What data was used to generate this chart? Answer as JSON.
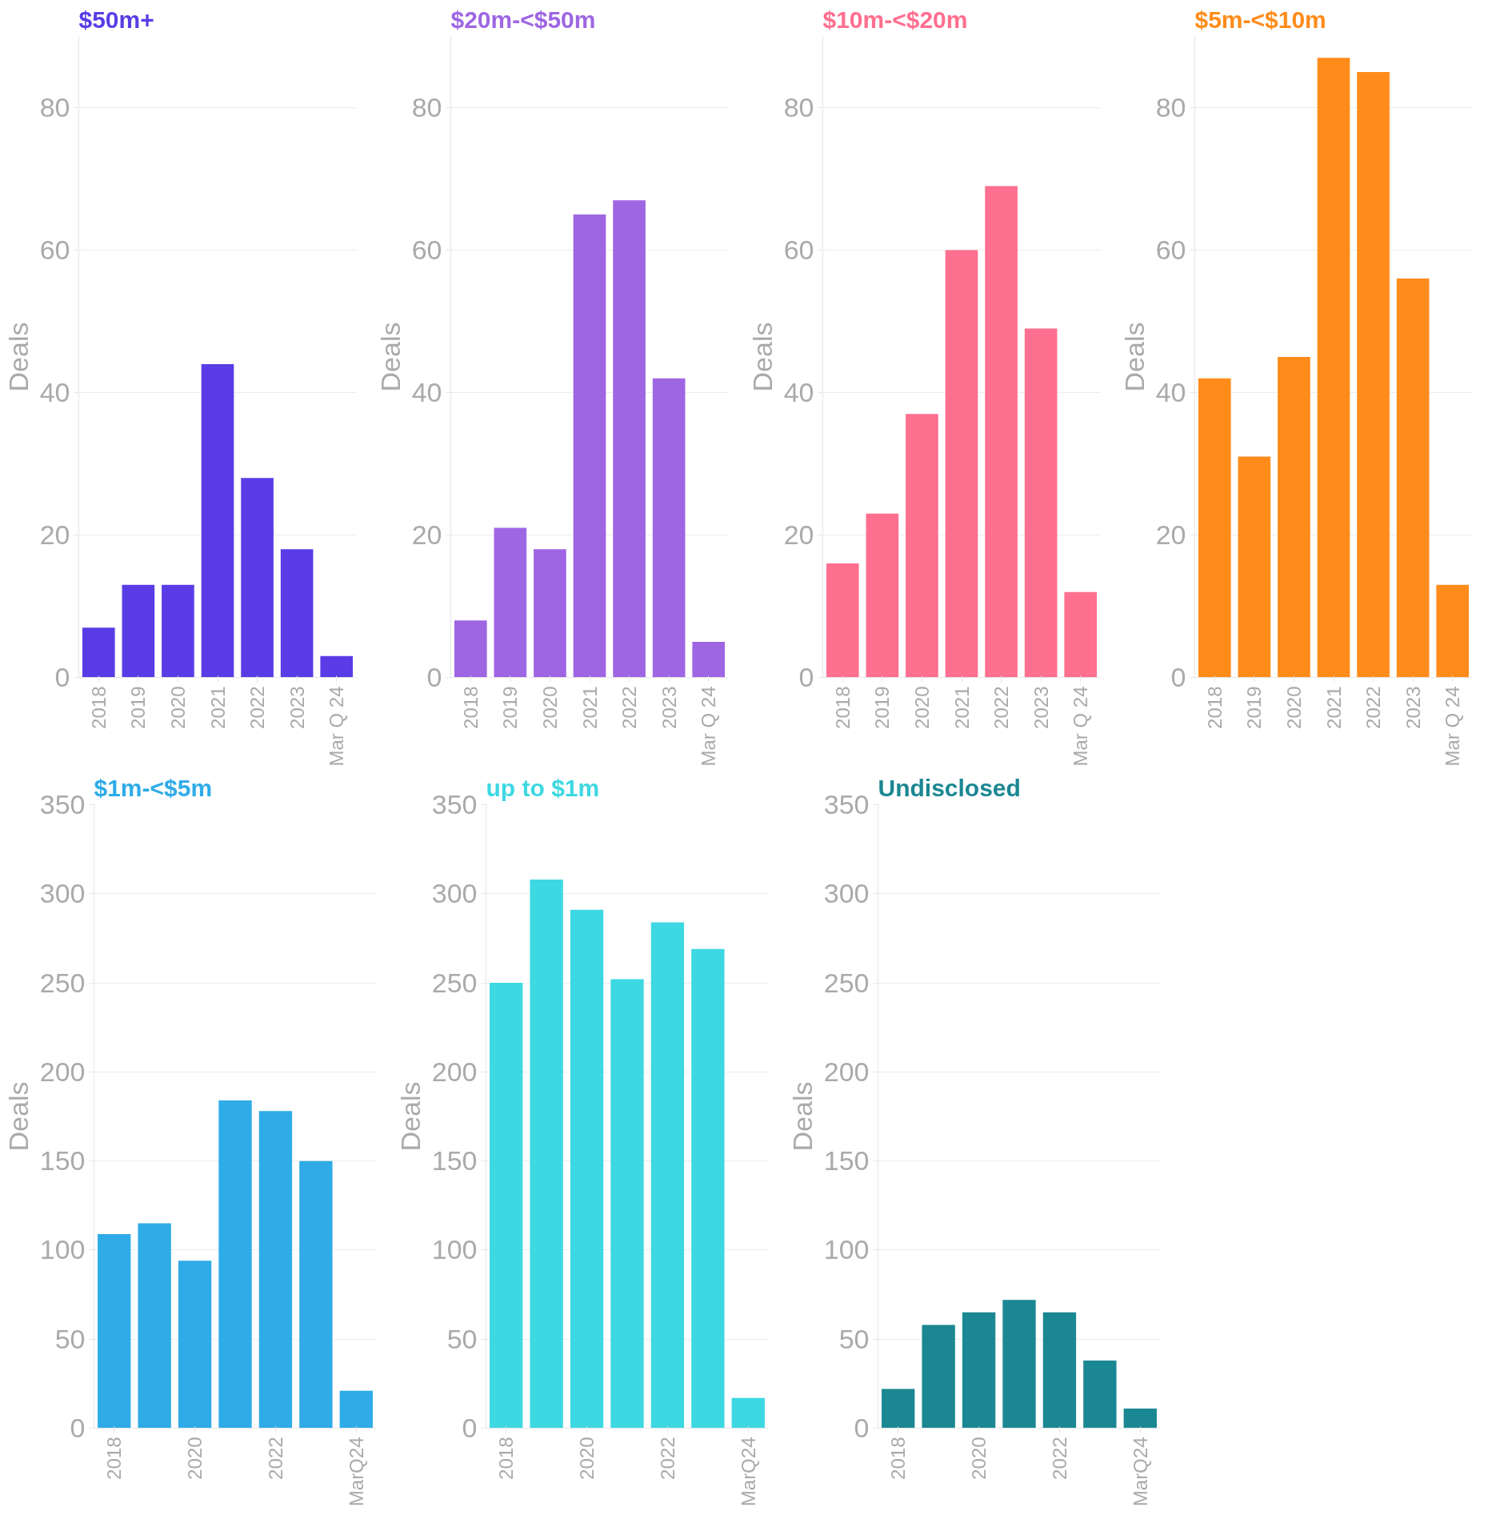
{
  "chart_data": [
    {
      "type": "bar",
      "title": "$50m+",
      "ylabel": "Deals",
      "categories": [
        "2018",
        "2019",
        "2020",
        "2021",
        "2022",
        "2023",
        "Mar Q 24"
      ],
      "values": [
        7,
        13,
        13,
        44,
        28,
        18,
        3
      ],
      "color": "#5a3ce6",
      "ylim": [
        0,
        90
      ],
      "yticks": [
        0,
        20,
        40,
        60,
        80
      ],
      "grid": "y"
    },
    {
      "type": "bar",
      "title": "$20m-<$50m",
      "ylabel": "Deals",
      "categories": [
        "2018",
        "2019",
        "2020",
        "2021",
        "2022",
        "2023",
        "Mar Q 24"
      ],
      "values": [
        8,
        21,
        18,
        65,
        67,
        42,
        5
      ],
      "color": "#9e66e3",
      "ylim": [
        0,
        90
      ],
      "yticks": [
        0,
        20,
        40,
        60,
        80
      ],
      "grid": "y"
    },
    {
      "type": "bar",
      "title": "$10m-<$20m",
      "ylabel": "Deals",
      "categories": [
        "2018",
        "2019",
        "2020",
        "2021",
        "2022",
        "2023",
        "Mar Q 24"
      ],
      "values": [
        16,
        23,
        37,
        60,
        69,
        49,
        12
      ],
      "color": "#ff6f8f",
      "ylim": [
        0,
        90
      ],
      "yticks": [
        0,
        20,
        40,
        60,
        80
      ],
      "grid": "y"
    },
    {
      "type": "bar",
      "title": "$5m-<$10m",
      "ylabel": "Deals",
      "categories": [
        "2018",
        "2019",
        "2020",
        "2021",
        "2022",
        "2023",
        "Mar Q 24"
      ],
      "values": [
        42,
        31,
        45,
        87,
        85,
        56,
        13
      ],
      "color": "#ff8c1a",
      "ylim": [
        0,
        90
      ],
      "yticks": [
        0,
        20,
        40,
        60,
        80
      ],
      "grid": "y"
    },
    {
      "type": "bar",
      "title": "$1m-<$5m",
      "ylabel": "Deals",
      "categories": [
        "2018",
        null,
        "2020",
        null,
        "2022",
        null,
        "MarQ24"
      ],
      "values": [
        109,
        115,
        94,
        184,
        178,
        150,
        21
      ],
      "color": "#2fabe8",
      "ylim": [
        0,
        350
      ],
      "yticks": [
        0,
        50,
        100,
        150,
        200,
        250,
        300,
        350
      ],
      "grid": "y"
    },
    {
      "type": "bar",
      "title": "up to $1m",
      "ylabel": "Deals",
      "categories": [
        "2018",
        null,
        "2020",
        null,
        "2022",
        null,
        "MarQ24"
      ],
      "values": [
        250,
        308,
        291,
        252,
        284,
        269,
        17
      ],
      "color": "#3dd8e2",
      "ylim": [
        0,
        350
      ],
      "yticks": [
        0,
        50,
        100,
        150,
        200,
        250,
        300,
        350
      ],
      "grid": "y"
    },
    {
      "type": "bar",
      "title": "Undisclosed",
      "ylabel": "Deals",
      "categories": [
        "2018",
        null,
        "2020",
        null,
        "2022",
        null,
        "MarQ24"
      ],
      "values": [
        22,
        58,
        65,
        72,
        65,
        38,
        11
      ],
      "color": "#1a8792",
      "ylim": [
        0,
        350
      ],
      "yticks": [
        0,
        50,
        100,
        150,
        200,
        250,
        300,
        350
      ],
      "grid": "y"
    }
  ]
}
